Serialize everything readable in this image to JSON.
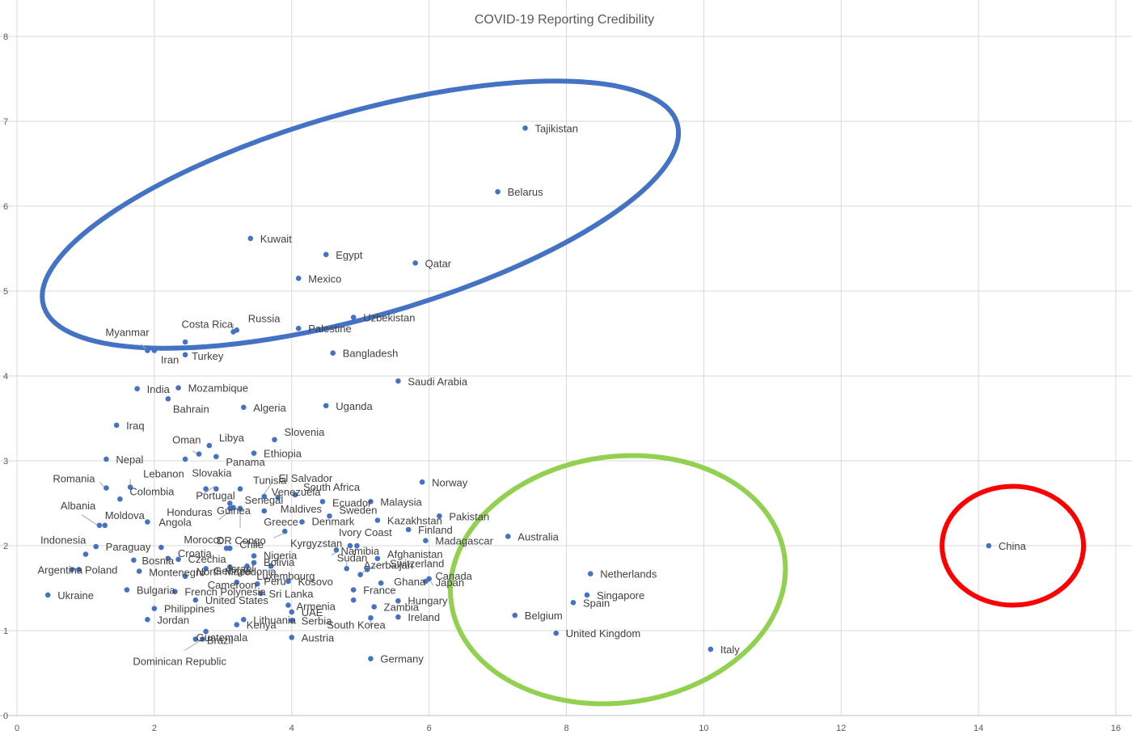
{
  "chart_data": {
    "type": "scatter",
    "title": "COVID-19 Reporting Credibility",
    "xlabel": "",
    "ylabel": "",
    "xlim": [
      0,
      16
    ],
    "ylim": [
      0,
      8
    ],
    "x_ticks": [
      0,
      2,
      4,
      6,
      8,
      10,
      12,
      14,
      16
    ],
    "y_ticks": [
      0,
      1,
      2,
      3,
      4,
      5,
      6,
      7,
      8
    ],
    "grid": true,
    "legend": "none",
    "marker_color": "#4472c4",
    "points": [
      {
        "label": "Tajikistan",
        "x": 7.4,
        "y": 6.92
      },
      {
        "label": "Belarus",
        "x": 7.0,
        "y": 6.17
      },
      {
        "label": "Kuwait",
        "x": 3.4,
        "y": 5.62
      },
      {
        "label": "Egypt",
        "x": 4.5,
        "y": 5.43
      },
      {
        "label": "Qatar",
        "x": 5.8,
        "y": 5.33
      },
      {
        "label": "Mexico",
        "x": 4.1,
        "y": 5.15
      },
      {
        "label": "Uzbekistan",
        "x": 4.9,
        "y": 4.69
      },
      {
        "label": "Russia",
        "x": 3.2,
        "y": 4.54
      },
      {
        "label": "Palestine",
        "x": 4.1,
        "y": 4.56
      },
      {
        "label": "Costa Rica",
        "x": 3.15,
        "y": 4.52
      },
      {
        "label": "Myanmar",
        "x": 1.9,
        "y": 4.3
      },
      {
        "label": "Iran",
        "x": 2.0,
        "y": 4.3
      },
      {
        "label": "Turkey",
        "x": 2.45,
        "y": 4.25
      },
      {
        "label": "",
        "x": 2.45,
        "y": 4.4
      },
      {
        "label": "Bangladesh",
        "x": 4.6,
        "y": 4.27
      },
      {
        "label": "Saudi Arabia",
        "x": 5.55,
        "y": 3.94
      },
      {
        "label": "India",
        "x": 1.75,
        "y": 3.85
      },
      {
        "label": "Mozambique",
        "x": 2.35,
        "y": 3.86
      },
      {
        "label": "Bahrain",
        "x": 2.2,
        "y": 3.73
      },
      {
        "label": "Algeria",
        "x": 3.3,
        "y": 3.63
      },
      {
        "label": "Uganda",
        "x": 4.5,
        "y": 3.65
      },
      {
        "label": "Iraq",
        "x": 1.45,
        "y": 3.42
      },
      {
        "label": "Slovenia",
        "x": 3.75,
        "y": 3.25
      },
      {
        "label": "Libya",
        "x": 2.8,
        "y": 3.18
      },
      {
        "label": "Oman",
        "x": 2.65,
        "y": 3.08
      },
      {
        "label": "Ethiopia",
        "x": 3.45,
        "y": 3.09
      },
      {
        "label": "Nepal",
        "x": 1.3,
        "y": 3.02
      },
      {
        "label": "",
        "x": 2.45,
        "y": 3.02
      },
      {
        "label": "Panama",
        "x": 2.9,
        "y": 3.05
      },
      {
        "label": "Norway",
        "x": 5.9,
        "y": 2.75
      },
      {
        "label": "Romania",
        "x": 1.3,
        "y": 2.68
      },
      {
        "label": "Colombia",
        "x": 1.5,
        "y": 2.55
      },
      {
        "label": "Lebanon",
        "x": 1.65,
        "y": 2.69
      },
      {
        "label": "Slovakia",
        "x": 2.9,
        "y": 2.67
      },
      {
        "label": "",
        "x": 2.75,
        "y": 2.67
      },
      {
        "label": "Tunisia",
        "x": 3.25,
        "y": 2.67
      },
      {
        "label": "El Salvador",
        "x": 3.6,
        "y": 2.58
      },
      {
        "label": "South Africa",
        "x": 4.05,
        "y": 2.6
      },
      {
        "label": "Portugal",
        "x": 3.1,
        "y": 2.5
      },
      {
        "label": "Senegal",
        "x": 3.15,
        "y": 2.45
      },
      {
        "label": "Venezuela",
        "x": 3.8,
        "y": 2.57
      },
      {
        "label": "Ecuador",
        "x": 4.45,
        "y": 2.52
      },
      {
        "label": "Malaysia",
        "x": 5.15,
        "y": 2.52
      },
      {
        "label": "Honduras",
        "x": 3.1,
        "y": 2.44
      },
      {
        "label": "Maldives",
        "x": 3.6,
        "y": 2.41
      },
      {
        "label": "Guinea",
        "x": 3.25,
        "y": 2.44
      },
      {
        "label": "Sweden",
        "x": 4.55,
        "y": 2.35
      },
      {
        "label": "Pakistan",
        "x": 6.15,
        "y": 2.35
      },
      {
        "label": "Denmark",
        "x": 4.15,
        "y": 2.28
      },
      {
        "label": "Kazakhstan",
        "x": 5.25,
        "y": 2.3
      },
      {
        "label": "Albania",
        "x": 1.2,
        "y": 2.24
      },
      {
        "label": "Moldova",
        "x": 1.28,
        "y": 2.24
      },
      {
        "label": "Angola",
        "x": 1.9,
        "y": 2.28
      },
      {
        "label": "Greece",
        "x": 3.9,
        "y": 2.17
      },
      {
        "label": "Finland",
        "x": 5.7,
        "y": 2.19
      },
      {
        "label": "Ivory Coast",
        "x": 4.85,
        "y": 2.0
      },
      {
        "label": "Madagascar",
        "x": 5.95,
        "y": 2.06
      },
      {
        "label": "Australia",
        "x": 7.15,
        "y": 2.11
      },
      {
        "label": "Indonesia",
        "x": 1.0,
        "y": 1.9
      },
      {
        "label": "Paraguay",
        "x": 1.15,
        "y": 1.99
      },
      {
        "label": "Morocco",
        "x": 2.1,
        "y": 1.98
      },
      {
        "label": "DR Congo",
        "x": 3.05,
        "y": 1.97
      },
      {
        "label": "Croatia",
        "x": 2.2,
        "y": 1.85
      },
      {
        "label": "Chile",
        "x": 3.1,
        "y": 1.97
      },
      {
        "label": "Kyrgyzstan",
        "x": 4.65,
        "y": 1.95
      },
      {
        "label": "Nigeria",
        "x": 3.45,
        "y": 1.88
      },
      {
        "label": "Namibia",
        "x": 4.95,
        "y": 2.0
      },
      {
        "label": "Afghanistan",
        "x": 5.25,
        "y": 1.85
      },
      {
        "label": "Argentina",
        "x": 0.9,
        "y": 1.72
      },
      {
        "label": "Poland",
        "x": 0.8,
        "y": 1.72
      },
      {
        "label": "Bosnia",
        "x": 1.7,
        "y": 1.83
      },
      {
        "label": "Czechia",
        "x": 2.35,
        "y": 1.84
      },
      {
        "label": "Bolivia",
        "x": 3.45,
        "y": 1.8
      },
      {
        "label": "Georgia",
        "x": 3.1,
        "y": 1.75
      },
      {
        "label": "Israel",
        "x": 3.35,
        "y": 1.76
      },
      {
        "label": "Sudan",
        "x": 4.8,
        "y": 1.73
      },
      {
        "label": "Switzerland",
        "x": 5.1,
        "y": 1.72
      },
      {
        "label": "Montenegro",
        "x": 1.78,
        "y": 1.7
      },
      {
        "label": "North Macedonia",
        "x": 2.75,
        "y": 1.73
      },
      {
        "label": "Luxembourg",
        "x": 3.7,
        "y": 1.76
      },
      {
        "label": "Azerbaijan",
        "x": 5.0,
        "y": 1.66
      },
      {
        "label": "",
        "x": 2.45,
        "y": 1.64
      },
      {
        "label": "Canada",
        "x": 5.95,
        "y": 1.58
      },
      {
        "label": "Japan",
        "x": 6.0,
        "y": 1.61
      },
      {
        "label": "Kosovo",
        "x": 3.95,
        "y": 1.58
      },
      {
        "label": "Ghana",
        "x": 5.3,
        "y": 1.56
      },
      {
        "label": "Cameroon",
        "x": 3.2,
        "y": 1.57
      },
      {
        "label": "Peru",
        "x": 3.5,
        "y": 1.55
      },
      {
        "label": "Bulgaria",
        "x": 1.6,
        "y": 1.48
      },
      {
        "label": "French Polynesia",
        "x": 2.3,
        "y": 1.46
      },
      {
        "label": "Sri Lanka",
        "x": 3.55,
        "y": 1.44
      },
      {
        "label": "France",
        "x": 4.9,
        "y": 1.48
      },
      {
        "label": "Ukraine",
        "x": 0.45,
        "y": 1.42
      },
      {
        "label": "United States",
        "x": 2.6,
        "y": 1.36
      },
      {
        "label": "Hungary",
        "x": 5.55,
        "y": 1.35
      },
      {
        "label": "Netherlands",
        "x": 8.35,
        "y": 1.67
      },
      {
        "label": "Singapore",
        "x": 8.3,
        "y": 1.42
      },
      {
        "label": "Spain",
        "x": 8.1,
        "y": 1.33
      },
      {
        "label": "Philippines",
        "x": 2.0,
        "y": 1.26
      },
      {
        "label": "Armenia",
        "x": 3.95,
        "y": 1.3
      },
      {
        "label": "Zambia",
        "x": 5.2,
        "y": 1.28
      },
      {
        "label": "UAE",
        "x": 4.0,
        "y": 1.22
      },
      {
        "label": "",
        "x": 4.9,
        "y": 1.36
      },
      {
        "label": "Jordan",
        "x": 1.9,
        "y": 1.13
      },
      {
        "label": "Lithuania",
        "x": 3.3,
        "y": 1.13
      },
      {
        "label": "Serbia",
        "x": 4.0,
        "y": 1.12
      },
      {
        "label": "South Korea",
        "x": 5.15,
        "y": 1.15
      },
      {
        "label": "Ireland",
        "x": 5.55,
        "y": 1.16
      },
      {
        "label": "Belgium",
        "x": 7.25,
        "y": 1.18
      },
      {
        "label": "Kenya",
        "x": 3.2,
        "y": 1.07
      },
      {
        "label": "Guatemala",
        "x": 2.75,
        "y": 0.99
      },
      {
        "label": "United Kingdom",
        "x": 7.85,
        "y": 0.97
      },
      {
        "label": "Brazil",
        "x": 2.6,
        "y": 0.9
      },
      {
        "label": "Dominican Republic",
        "x": 2.7,
        "y": 0.9
      },
      {
        "label": "Austria",
        "x": 4.0,
        "y": 0.92
      },
      {
        "label": "Italy",
        "x": 10.1,
        "y": 0.78
      },
      {
        "label": "Germany",
        "x": 5.15,
        "y": 0.67
      },
      {
        "label": "China",
        "x": 14.15,
        "y": 2.0
      }
    ],
    "annotations": [
      {
        "shape": "ellipse",
        "color": "#4472c4",
        "cx": 5.0,
        "cy": 5.9,
        "rx": 4.8,
        "ry": 1.2,
        "rotation_deg": -16
      },
      {
        "shape": "ellipse",
        "color": "#92d050",
        "cx": 8.75,
        "cy": 1.6,
        "rx": 2.45,
        "ry": 1.45,
        "rotation_deg": -8
      },
      {
        "shape": "ellipse",
        "color": "#ff0000",
        "cx": 14.5,
        "cy": 2.0,
        "rx": 1.03,
        "ry": 0.7,
        "rotation_deg": 0
      }
    ]
  }
}
